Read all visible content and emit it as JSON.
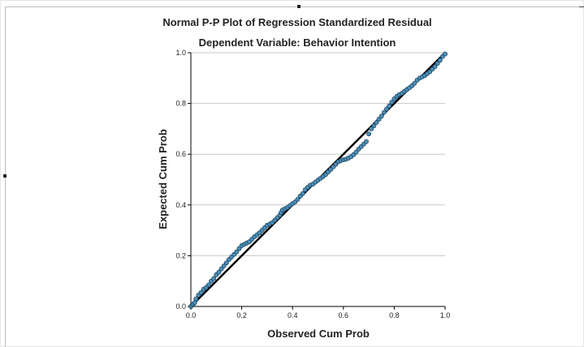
{
  "colors": {
    "point_fill": "#4a8fb8",
    "point_stroke": "#1d3e57",
    "reference_line": "#000000",
    "gridline": "#c8c8c8",
    "axis": "#000000"
  },
  "chart_data": {
    "type": "scatter",
    "title": "Normal P-P Plot of Regression Standardized Residual",
    "subtitle": "Dependent Variable: Behavior Intention",
    "xlabel": "Observed Cum Prob",
    "ylabel": "Expected Cum Prob",
    "xlim": [
      0,
      1
    ],
    "ylim": [
      0,
      1
    ],
    "xticks": [
      "0.0",
      "0.2",
      "0.4",
      "0.6",
      "0.8",
      "1.0"
    ],
    "yticks": [
      "0.0",
      "0.2",
      "0.4",
      "0.6",
      "0.8",
      "1.0"
    ],
    "grid": "horizontal",
    "reference_line": [
      [
        0,
        0
      ],
      [
        1,
        1
      ]
    ],
    "points": [
      [
        0.0,
        0.0
      ],
      [
        0.005,
        0.005
      ],
      [
        0.01,
        0.01
      ],
      [
        0.015,
        0.015
      ],
      [
        0.02,
        0.03
      ],
      [
        0.03,
        0.045
      ],
      [
        0.04,
        0.055
      ],
      [
        0.05,
        0.068
      ],
      [
        0.06,
        0.075
      ],
      [
        0.07,
        0.085
      ],
      [
        0.08,
        0.1
      ],
      [
        0.09,
        0.11
      ],
      [
        0.1,
        0.125
      ],
      [
        0.11,
        0.135
      ],
      [
        0.12,
        0.148
      ],
      [
        0.13,
        0.16
      ],
      [
        0.14,
        0.172
      ],
      [
        0.15,
        0.185
      ],
      [
        0.16,
        0.195
      ],
      [
        0.17,
        0.205
      ],
      [
        0.18,
        0.215
      ],
      [
        0.19,
        0.228
      ],
      [
        0.2,
        0.24
      ],
      [
        0.21,
        0.245
      ],
      [
        0.22,
        0.25
      ],
      [
        0.23,
        0.255
      ],
      [
        0.24,
        0.265
      ],
      [
        0.25,
        0.275
      ],
      [
        0.26,
        0.282
      ],
      [
        0.27,
        0.29
      ],
      [
        0.28,
        0.3
      ],
      [
        0.29,
        0.31
      ],
      [
        0.3,
        0.32
      ],
      [
        0.31,
        0.325
      ],
      [
        0.32,
        0.33
      ],
      [
        0.33,
        0.34
      ],
      [
        0.34,
        0.35
      ],
      [
        0.35,
        0.36
      ],
      [
        0.355,
        0.37
      ],
      [
        0.36,
        0.38
      ],
      [
        0.37,
        0.385
      ],
      [
        0.38,
        0.39
      ],
      [
        0.39,
        0.398
      ],
      [
        0.4,
        0.405
      ],
      [
        0.41,
        0.412
      ],
      [
        0.42,
        0.422
      ],
      [
        0.43,
        0.435
      ],
      [
        0.44,
        0.445
      ],
      [
        0.45,
        0.46
      ],
      [
        0.46,
        0.47
      ],
      [
        0.47,
        0.478
      ],
      [
        0.48,
        0.482
      ],
      [
        0.49,
        0.49
      ],
      [
        0.5,
        0.498
      ],
      [
        0.51,
        0.505
      ],
      [
        0.52,
        0.512
      ],
      [
        0.53,
        0.52
      ],
      [
        0.54,
        0.53
      ],
      [
        0.55,
        0.54
      ],
      [
        0.56,
        0.55
      ],
      [
        0.57,
        0.56
      ],
      [
        0.58,
        0.57
      ],
      [
        0.59,
        0.575
      ],
      [
        0.6,
        0.578
      ],
      [
        0.61,
        0.58
      ],
      [
        0.62,
        0.585
      ],
      [
        0.63,
        0.59
      ],
      [
        0.64,
        0.598
      ],
      [
        0.65,
        0.608
      ],
      [
        0.66,
        0.62
      ],
      [
        0.67,
        0.63
      ],
      [
        0.68,
        0.64
      ],
      [
        0.69,
        0.65
      ],
      [
        0.7,
        0.68
      ],
      [
        0.71,
        0.7
      ],
      [
        0.72,
        0.712
      ],
      [
        0.73,
        0.725
      ],
      [
        0.74,
        0.738
      ],
      [
        0.75,
        0.75
      ],
      [
        0.76,
        0.765
      ],
      [
        0.77,
        0.778
      ],
      [
        0.78,
        0.79
      ],
      [
        0.79,
        0.805
      ],
      [
        0.8,
        0.818
      ],
      [
        0.81,
        0.828
      ],
      [
        0.82,
        0.835
      ],
      [
        0.83,
        0.84
      ],
      [
        0.84,
        0.848
      ],
      [
        0.85,
        0.855
      ],
      [
        0.86,
        0.862
      ],
      [
        0.87,
        0.87
      ],
      [
        0.88,
        0.88
      ],
      [
        0.89,
        0.892
      ],
      [
        0.9,
        0.9
      ],
      [
        0.91,
        0.905
      ],
      [
        0.92,
        0.91
      ],
      [
        0.93,
        0.918
      ],
      [
        0.94,
        0.925
      ],
      [
        0.95,
        0.935
      ],
      [
        0.96,
        0.945
      ],
      [
        0.97,
        0.958
      ],
      [
        0.98,
        0.97
      ],
      [
        0.99,
        0.985
      ],
      [
        1.0,
        0.995
      ]
    ]
  }
}
